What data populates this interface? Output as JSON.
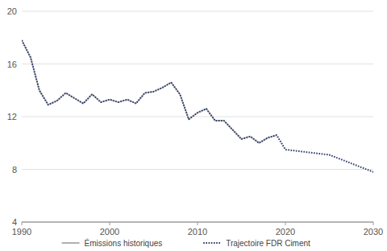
{
  "chart_data": {
    "type": "line",
    "x": [
      1990,
      1991,
      1992,
      1993,
      1994,
      1995,
      1996,
      1997,
      1998,
      1999,
      2000,
      2001,
      2002,
      2003,
      2004,
      2005,
      2006,
      2007,
      2008,
      2009,
      2010,
      2011,
      2012,
      2013,
      2014,
      2015,
      2016,
      2017,
      2018,
      2019,
      2020,
      2025,
      2030
    ],
    "series": [
      {
        "name": "Émissions historiques",
        "color": "#b0b0b0",
        "line_style": "solid",
        "values": [
          17.8,
          16.5,
          14.0,
          12.9,
          13.2,
          13.8,
          13.4,
          13.0,
          13.7,
          13.1,
          13.3,
          13.1,
          13.3,
          13.0,
          13.8,
          13.9,
          14.2,
          14.6,
          13.7,
          11.8,
          12.3,
          12.6,
          11.7,
          11.7,
          11.0,
          10.3,
          10.5,
          10.0,
          10.4,
          10.6,
          null,
          null,
          null
        ]
      },
      {
        "name": "Trajectoire FDR Ciment",
        "color": "#2e3b6b",
        "line_style": "dotted",
        "values": [
          17.8,
          16.5,
          14.0,
          12.9,
          13.2,
          13.8,
          13.4,
          13.0,
          13.7,
          13.1,
          13.3,
          13.1,
          13.3,
          13.0,
          13.8,
          13.9,
          14.2,
          14.6,
          13.7,
          11.8,
          12.3,
          12.6,
          11.7,
          11.7,
          11.0,
          10.3,
          10.5,
          10.0,
          10.4,
          10.6,
          9.5,
          9.1,
          7.8
        ]
      }
    ],
    "xlim": [
      1990,
      2030
    ],
    "xticks": [
      1990,
      2000,
      2010,
      2020,
      2030
    ],
    "ylim": [
      4,
      20
    ],
    "yticks": [
      4,
      8,
      12,
      16,
      20
    ],
    "grid": true,
    "legend": "bottom"
  }
}
